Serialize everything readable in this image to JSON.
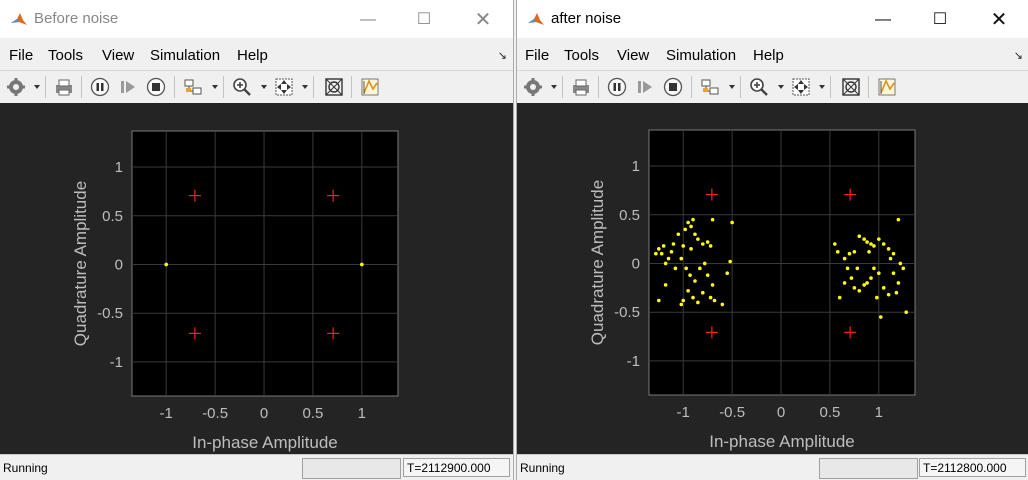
{
  "colors": {
    "plot_bg": "#000000",
    "figure_bg": "#242424",
    "grid": "#3a3a3a",
    "axis_text": "#bdbdbd",
    "reference": "#ff2020",
    "samples": "#ffff00"
  },
  "windows": [
    {
      "title": "Before noise",
      "menu": [
        "File",
        "Tools",
        "View",
        "Simulation",
        "Help"
      ],
      "status": {
        "state": "Running",
        "time": "T=2112900.000"
      },
      "chart_data": {
        "type": "scatter",
        "xlabel": "In-phase Amplitude",
        "ylabel": "Quadrature Amplitude",
        "xlim": [
          -1.35,
          1.37
        ],
        "ylim": [
          -1.35,
          1.37
        ],
        "xticks": [
          -1,
          -0.5,
          0,
          0.5,
          1
        ],
        "yticks": [
          -1,
          -0.5,
          0,
          0.5,
          1
        ],
        "xtick_labels": [
          "-1",
          "-0.5",
          "0",
          "0.5",
          "1"
        ],
        "ytick_labels": [
          "1",
          "0.5",
          "0",
          "-0.5",
          "-1"
        ],
        "grid": true,
        "reference": [
          [
            -0.707,
            0.707
          ],
          [
            0.707,
            0.707
          ],
          [
            -0.707,
            -0.707
          ],
          [
            0.707,
            -0.707
          ]
        ],
        "samples": [
          [
            -1,
            0
          ],
          [
            1,
            0
          ]
        ]
      }
    },
    {
      "title": "after noise",
      "menu": [
        "File",
        "Tools",
        "View",
        "Simulation",
        "Help"
      ],
      "status": {
        "state": "Running",
        "time": "T=2112800.000"
      },
      "chart_data": {
        "type": "scatter",
        "xlabel": "In-phase Amplitude",
        "ylabel": "Quadrature Amplitude",
        "xlim": [
          -1.35,
          1.37
        ],
        "ylim": [
          -1.35,
          1.37
        ],
        "xticks": [
          -1,
          -0.5,
          0,
          0.5,
          1
        ],
        "yticks": [
          -1,
          -0.5,
          0,
          0.5,
          1
        ],
        "xtick_labels": [
          "-1",
          "-0.5",
          "0",
          "0.5",
          "1"
        ],
        "ytick_labels": [
          "1",
          "0.5",
          "0",
          "-0.5",
          "-1"
        ],
        "grid": true,
        "reference": [
          [
            -0.707,
            0.707
          ],
          [
            0.707,
            0.707
          ],
          [
            -0.707,
            -0.707
          ],
          [
            0.707,
            -0.707
          ]
        ],
        "samples": [
          [
            -1.25,
            0.15
          ],
          [
            -1.2,
            0.18
          ],
          [
            -1.22,
            0.1
          ],
          [
            -1.15,
            0.05
          ],
          [
            -1.18,
            -0.22
          ],
          [
            -1.25,
            -0.38
          ],
          [
            -1.1,
            0.2
          ],
          [
            -1.05,
            0.3
          ],
          [
            -0.98,
            0.35
          ],
          [
            -0.95,
            0.42
          ],
          [
            -0.9,
            0.45
          ],
          [
            -0.88,
            0.3
          ],
          [
            -0.85,
            0.25
          ],
          [
            -0.8,
            0.2
          ],
          [
            -0.75,
            0.22
          ],
          [
            -0.72,
            0.18
          ],
          [
            -0.7,
            0.45
          ],
          [
            -0.92,
            0.15
          ],
          [
            -1.0,
            0.18
          ],
          [
            -1.02,
            0.05
          ],
          [
            -0.97,
            -0.05
          ],
          [
            -0.93,
            -0.12
          ],
          [
            -0.88,
            -0.18
          ],
          [
            -0.95,
            -0.28
          ],
          [
            -1.0,
            -0.38
          ],
          [
            -1.02,
            -0.42
          ],
          [
            -0.9,
            -0.35
          ],
          [
            -0.85,
            -0.4
          ],
          [
            -0.8,
            -0.3
          ],
          [
            -0.75,
            -0.12
          ],
          [
            -0.7,
            -0.22
          ],
          [
            -0.72,
            -0.35
          ],
          [
            -0.68,
            -0.38
          ],
          [
            -0.6,
            -0.42
          ],
          [
            -0.55,
            -0.1
          ],
          [
            -0.52,
            0.02
          ],
          [
            -0.5,
            0.42
          ],
          [
            -1.08,
            -0.05
          ],
          [
            -1.12,
            0.12
          ],
          [
            -0.83,
            -0.05
          ],
          [
            -0.78,
            0.0
          ],
          [
            -0.92,
            0.38
          ],
          [
            -1.18,
            0.0
          ],
          [
            -1.28,
            0.1
          ],
          [
            0.55,
            0.2
          ],
          [
            0.58,
            0.12
          ],
          [
            0.65,
            0.05
          ],
          [
            0.7,
            0.1
          ],
          [
            0.75,
            0.12
          ],
          [
            0.8,
            0.28
          ],
          [
            0.85,
            0.25
          ],
          [
            0.88,
            0.22
          ],
          [
            0.92,
            0.2
          ],
          [
            0.95,
            0.18
          ],
          [
            1.0,
            0.25
          ],
          [
            1.05,
            0.2
          ],
          [
            1.1,
            0.15
          ],
          [
            1.15,
            0.1
          ],
          [
            1.2,
            0.45
          ],
          [
            1.22,
            0.0
          ],
          [
            1.25,
            -0.05
          ],
          [
            1.28,
            -0.5
          ],
          [
            1.2,
            -0.2
          ],
          [
            1.15,
            -0.1
          ],
          [
            1.1,
            -0.32
          ],
          [
            1.05,
            -0.25
          ],
          [
            1.0,
            -0.1
          ],
          [
            0.95,
            -0.05
          ],
          [
            0.92,
            -0.15
          ],
          [
            0.88,
            -0.2
          ],
          [
            0.85,
            -0.22
          ],
          [
            0.8,
            -0.28
          ],
          [
            0.75,
            -0.25
          ],
          [
            0.72,
            -0.15
          ],
          [
            0.68,
            -0.05
          ],
          [
            0.6,
            -0.35
          ],
          [
            0.65,
            -0.2
          ],
          [
            0.98,
            -0.35
          ],
          [
            1.02,
            -0.55
          ],
          [
            0.9,
            0.12
          ],
          [
            0.78,
            -0.05
          ],
          [
            1.12,
            0.05
          ],
          [
            1.18,
            -0.3
          ]
        ]
      }
    }
  ]
}
